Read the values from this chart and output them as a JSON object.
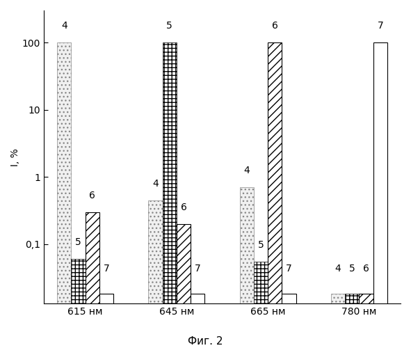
{
  "groups": [
    "615 нм",
    "645 нм",
    "665 нм",
    "780 нм"
  ],
  "bar_labels": [
    4,
    5,
    6,
    7
  ],
  "values": [
    [
      100,
      0.06,
      0.3,
      0.018
    ],
    [
      0.45,
      100,
      0.2,
      0.018
    ],
    [
      0.7,
      0.055,
      100,
      0.018
    ],
    [
      0.018,
      0.018,
      0.018,
      100
    ]
  ],
  "ylim": [
    0.013,
    300
  ],
  "yticks": [
    0.1,
    1,
    10,
    100
  ],
  "yticklabels": [
    "0,1",
    "1",
    "10",
    "100"
  ],
  "ylabel": "I, %",
  "caption": "Фиг. 2",
  "bar_width": 0.17,
  "background_color": "#ffffff",
  "bar_edge_color": "#000000",
  "bar_face_color": "#ffffff",
  "label_fontsize": 10,
  "axis_fontsize": 10,
  "caption_fontsize": 11
}
